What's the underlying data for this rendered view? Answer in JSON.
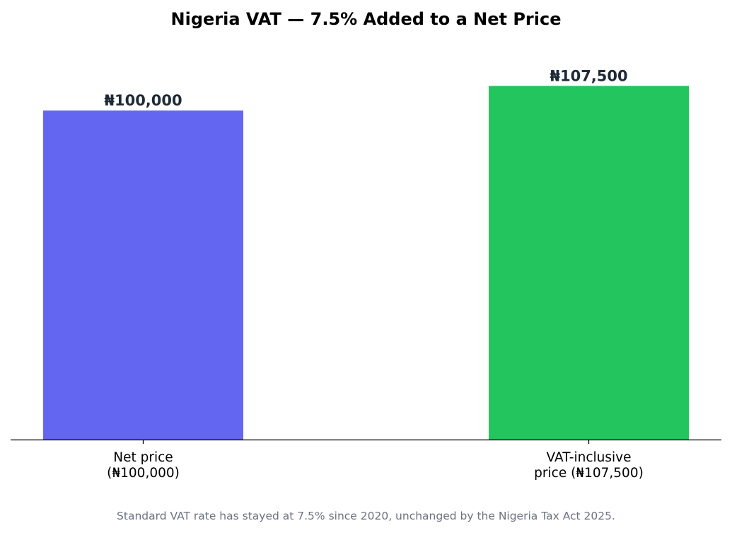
{
  "chart_data": {
    "type": "bar",
    "title": "Nigeria VAT — 7.5% Added to a Net Price",
    "categories": [
      [
        "Net price",
        "(₦100,000)"
      ],
      [
        "VAT-inclusive",
        "price (₦107,500)"
      ]
    ],
    "values": [
      100000,
      107500
    ],
    "data_labels": [
      "₦100,000",
      "₦107,500"
    ],
    "colors": [
      "#6366f1",
      "#22c55e"
    ],
    "xlabel": "",
    "ylabel": "",
    "ylim": [
      0,
      125000
    ],
    "grid": false,
    "legend": "none"
  },
  "footnote": "Standard VAT rate has stayed at 7.5% since 2020, unchanged by the Nigeria Tax Act 2025."
}
